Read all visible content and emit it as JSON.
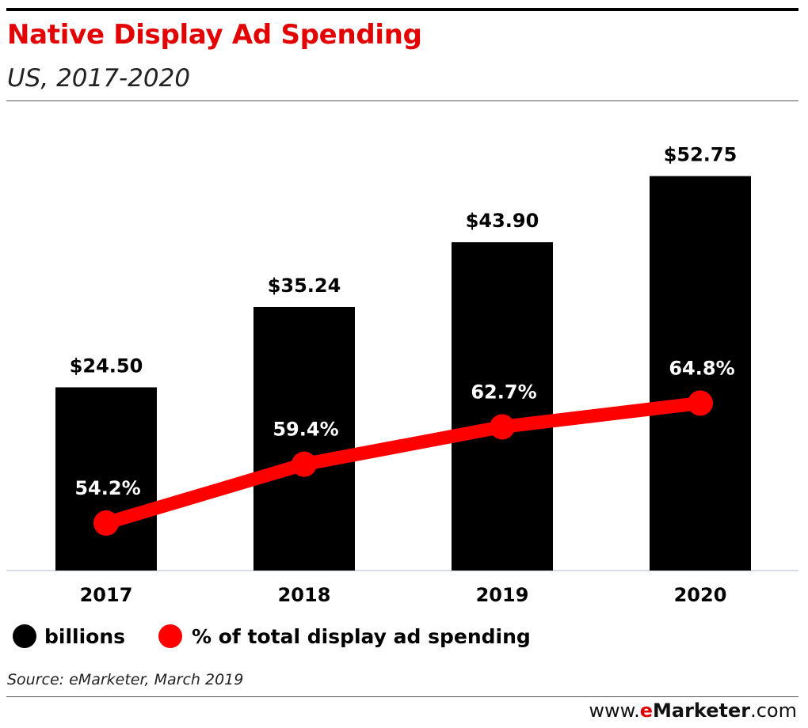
{
  "header": {
    "title": "Native Display Ad Spending",
    "subtitle": "US, 2017-2020"
  },
  "chart_data": {
    "type": "bar",
    "categories": [
      "2017",
      "2018",
      "2019",
      "2020"
    ],
    "series": [
      {
        "name": "billions",
        "type": "bar",
        "values": [
          24.5,
          35.24,
          43.9,
          52.75
        ],
        "labels": [
          "$24.50",
          "$35.24",
          "$43.90",
          "$52.75"
        ],
        "color": "#000000"
      },
      {
        "name": "% of total display ad spending",
        "type": "line",
        "values": [
          54.2,
          59.4,
          62.7,
          64.8
        ],
        "labels": [
          "54.2%",
          "59.4%",
          "62.7%",
          "64.8%"
        ],
        "color": "#ff0000"
      }
    ],
    "grid": false,
    "legend_position": "bottom-left"
  },
  "legend": {
    "billions": "billions",
    "share": "% of total display ad spending"
  },
  "footer": {
    "source": "Source: eMarketer, March 2019",
    "brand_prefix": "www.",
    "brand_e": "e",
    "brand_name": "Marketer",
    "brand_suffix": ".com"
  },
  "colors": {
    "title": "#e20000",
    "bar": "#000000",
    "line": "#ff0000"
  }
}
